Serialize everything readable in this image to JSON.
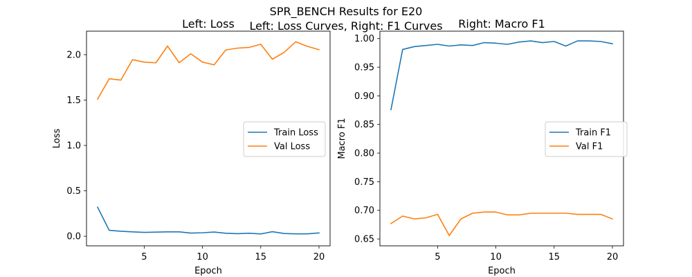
{
  "figure": {
    "suptitle_line1": "SPR_BENCH Results for E20",
    "suptitle_line2": "Left: Loss Curves, Right: F1 Curves"
  },
  "chart_data": [
    {
      "type": "line",
      "title": "Left: Loss",
      "xlabel": "Epoch",
      "ylabel": "Loss",
      "xlim": [
        0.05,
        20.95
      ],
      "ylim": [
        -0.106,
        2.259
      ],
      "xticks": [
        5,
        10,
        15,
        20
      ],
      "yticks": [
        0.0,
        0.5,
        1.0,
        1.5,
        2.0
      ],
      "ytick_labels": [
        "0.0",
        "0.5",
        "1.0",
        "1.5",
        "2.0"
      ],
      "grid": false,
      "legend": "center-right",
      "x": [
        1,
        2,
        3,
        4,
        5,
        6,
        7,
        8,
        9,
        10,
        11,
        12,
        13,
        14,
        15,
        16,
        17,
        18,
        19,
        20
      ],
      "series": [
        {
          "name": "Train Loss",
          "color": "#1f77b4",
          "values": [
            0.32,
            0.065,
            0.055,
            0.048,
            0.042,
            0.045,
            0.048,
            0.048,
            0.035,
            0.038,
            0.046,
            0.033,
            0.028,
            0.033,
            0.025,
            0.05,
            0.03,
            0.026,
            0.026,
            0.036
          ]
        },
        {
          "name": "Val Loss",
          "color": "#ff7f0e",
          "values": [
            1.51,
            1.735,
            1.72,
            1.945,
            1.918,
            1.91,
            2.095,
            1.912,
            2.01,
            1.918,
            1.888,
            2.052,
            2.072,
            2.08,
            2.115,
            1.95,
            2.025,
            2.142,
            2.092,
            2.055
          ]
        }
      ]
    },
    {
      "type": "line",
      "title": "Right: Macro F1",
      "xlabel": "Epoch",
      "ylabel": "Macro F1",
      "xlim": [
        0.05,
        20.95
      ],
      "ylim": [
        0.638,
        1.013
      ],
      "xticks": [
        5,
        10,
        15,
        20
      ],
      "yticks": [
        0.65,
        0.7,
        0.75,
        0.8,
        0.85,
        0.9,
        0.95,
        1.0
      ],
      "ytick_labels": [
        "0.65",
        "0.70",
        "0.75",
        "0.80",
        "0.85",
        "0.90",
        "0.95",
        "1.00"
      ],
      "grid": false,
      "legend": "center-right",
      "x": [
        1,
        2,
        3,
        4,
        5,
        6,
        7,
        8,
        9,
        10,
        11,
        12,
        13,
        14,
        15,
        16,
        17,
        18,
        19,
        20
      ],
      "series": [
        {
          "name": "Train F1",
          "color": "#1f77b4",
          "values": [
            0.876,
            0.981,
            0.986,
            0.988,
            0.99,
            0.987,
            0.989,
            0.988,
            0.993,
            0.992,
            0.99,
            0.994,
            0.996,
            0.993,
            0.995,
            0.987,
            0.996,
            0.996,
            0.995,
            0.991
          ]
        },
        {
          "name": "Val F1",
          "color": "#ff7f0e",
          "values": [
            0.677,
            0.69,
            0.685,
            0.687,
            0.693,
            0.656,
            0.685,
            0.695,
            0.697,
            0.697,
            0.692,
            0.692,
            0.695,
            0.695,
            0.695,
            0.695,
            0.693,
            0.693,
            0.693,
            0.685
          ]
        }
      ]
    }
  ]
}
